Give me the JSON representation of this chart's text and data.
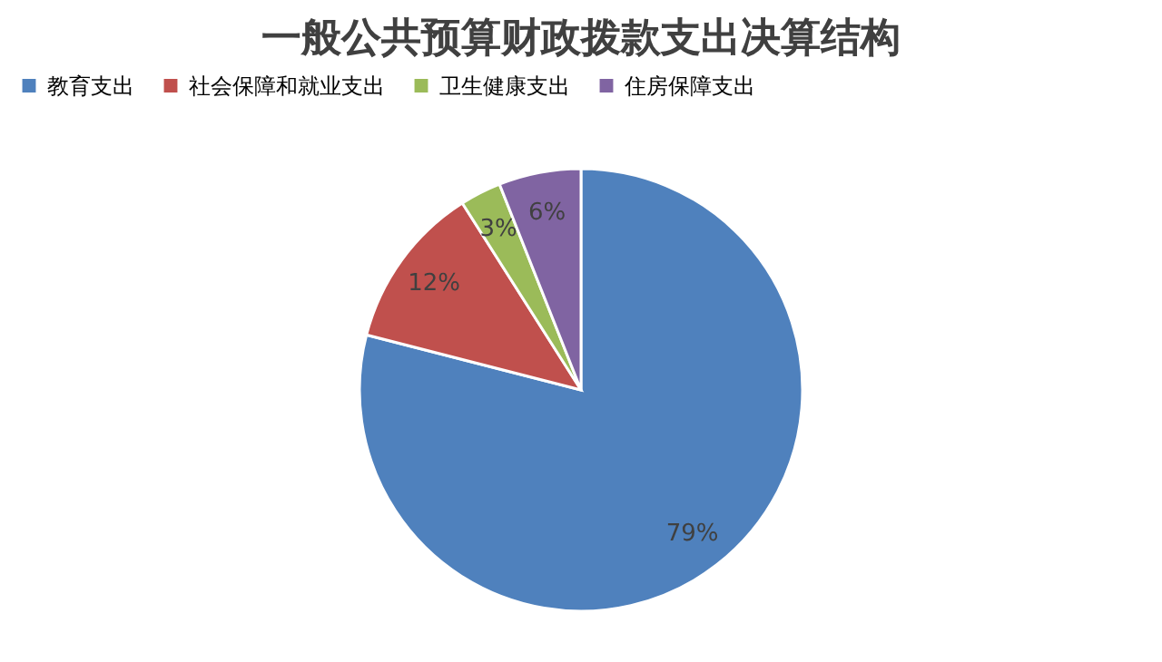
{
  "chart_data": {
    "type": "pie",
    "title": "一般公共预算财政拨款支出决算结构",
    "categories": [
      "教育支出",
      "社会保障和就业支出",
      "卫生健康支出",
      "住房保障支出"
    ],
    "values": [
      79,
      12,
      3,
      6
    ],
    "colors": [
      "#4f81bd",
      "#c0504d",
      "#9bbb59",
      "#8064a2"
    ],
    "value_labels": [
      "79%",
      "12%",
      "3%",
      "6%"
    ],
    "legend": "top"
  }
}
